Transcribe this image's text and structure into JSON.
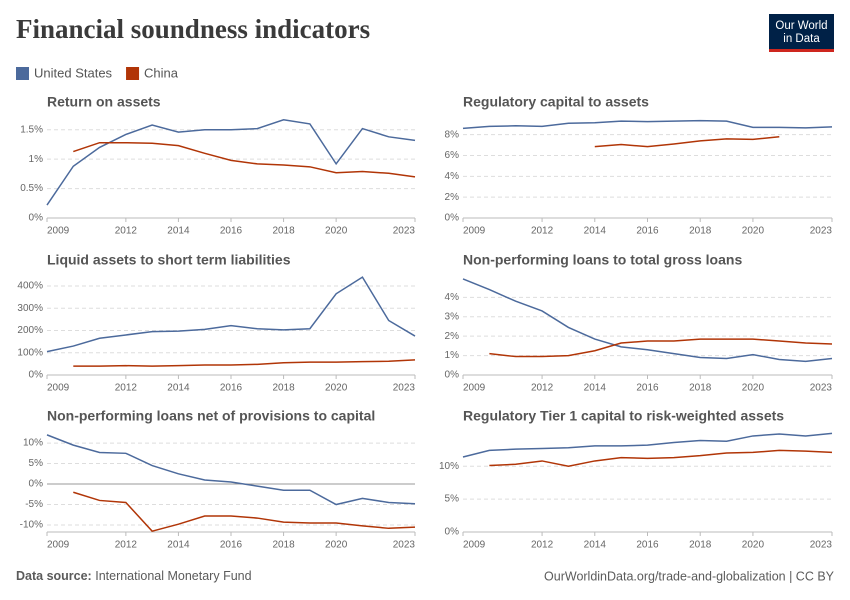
{
  "title": "Financial soundness indicators",
  "logo": [
    "Our World",
    "in Data"
  ],
  "source_label": "Data source:",
  "source": "International Monetary Fund",
  "credit": "OurWorldinData.org/trade-and-globalization | CC BY",
  "chart_data": [
    {
      "type": "line",
      "title": "Return on assets",
      "x": [
        2009,
        2010,
        2011,
        2012,
        2013,
        2014,
        2015,
        2016,
        2017,
        2018,
        2019,
        2020,
        2021,
        2022,
        2023
      ],
      "xlim": [
        2009,
        2023
      ],
      "xticks": [
        2009,
        2012,
        2014,
        2016,
        2018,
        2020,
        2023
      ],
      "ylim": [
        0,
        1.7
      ],
      "yticks": [
        {
          "value": 0,
          "label": "0%"
        },
        {
          "value": 0.5,
          "label": "0.5%"
        },
        {
          "value": 1,
          "label": "1%"
        },
        {
          "value": 1.5,
          "label": "1.5%"
        }
      ],
      "grid": true,
      "series": [
        {
          "name": "United States",
          "color": "#4c6a9c",
          "values": [
            0.22,
            0.88,
            1.2,
            1.42,
            1.58,
            1.46,
            1.5,
            1.5,
            1.52,
            1.67,
            1.6,
            0.92,
            1.52,
            1.38,
            1.32
          ]
        },
        {
          "name": "China",
          "color": "#b13507",
          "values": [
            null,
            1.13,
            1.28,
            1.28,
            1.27,
            1.23,
            1.1,
            0.98,
            0.92,
            0.9,
            0.87,
            0.77,
            0.79,
            0.76,
            0.7
          ]
        }
      ]
    },
    {
      "type": "line",
      "title": "Regulatory capital to assets",
      "x": [
        2009,
        2010,
        2011,
        2012,
        2013,
        2014,
        2015,
        2016,
        2017,
        2018,
        2019,
        2020,
        2021,
        2022,
        2023
      ],
      "xlim": [
        2009,
        2023
      ],
      "xticks": [
        2009,
        2012,
        2014,
        2016,
        2018,
        2020,
        2023
      ],
      "ylim": [
        0,
        9.6
      ],
      "yticks": [
        {
          "value": 0,
          "label": "0%"
        },
        {
          "value": 2,
          "label": "2%"
        },
        {
          "value": 4,
          "label": "4%"
        },
        {
          "value": 6,
          "label": "6%"
        },
        {
          "value": 8,
          "label": "8%"
        }
      ],
      "grid": true,
      "series": [
        {
          "name": "United States",
          "color": "#4c6a9c",
          "values": [
            8.6,
            8.8,
            8.85,
            8.8,
            9.1,
            9.15,
            9.3,
            9.25,
            9.3,
            9.35,
            9.3,
            8.7,
            8.7,
            8.65,
            8.75
          ]
        },
        {
          "name": "China",
          "color": "#b13507",
          "values": [
            null,
            null,
            null,
            null,
            null,
            6.85,
            7.05,
            6.85,
            7.1,
            7.4,
            7.6,
            7.55,
            7.8,
            null,
            null
          ]
        }
      ]
    },
    {
      "type": "line",
      "title": "Liquid assets to short term liabilities",
      "x": [
        2009,
        2010,
        2011,
        2012,
        2013,
        2014,
        2015,
        2016,
        2017,
        2018,
        2019,
        2020,
        2021,
        2022,
        2023
      ],
      "xlim": [
        2009,
        2023
      ],
      "xticks": [
        2009,
        2012,
        2014,
        2016,
        2018,
        2020,
        2023
      ],
      "ylim": [
        0,
        445
      ],
      "yticks": [
        {
          "value": 0,
          "label": "0%"
        },
        {
          "value": 100,
          "label": "100%"
        },
        {
          "value": 200,
          "label": "200%"
        },
        {
          "value": 300,
          "label": "300%"
        },
        {
          "value": 400,
          "label": "400%"
        }
      ],
      "grid": true,
      "series": [
        {
          "name": "United States",
          "color": "#4c6a9c",
          "values": [
            105,
            130,
            165,
            180,
            195,
            197,
            205,
            222,
            208,
            203,
            208,
            365,
            440,
            245,
            175
          ]
        },
        {
          "name": "China",
          "color": "#b13507",
          "values": [
            null,
            40,
            40,
            42,
            40,
            42,
            45,
            45,
            48,
            55,
            58,
            58,
            60,
            62,
            68
          ]
        }
      ]
    },
    {
      "type": "line",
      "title": "Non-performing loans to total gross loans",
      "x": [
        2009,
        2010,
        2011,
        2012,
        2013,
        2014,
        2015,
        2016,
        2017,
        2018,
        2019,
        2020,
        2021,
        2022,
        2023
      ],
      "xlim": [
        2009,
        2023
      ],
      "xticks": [
        2009,
        2012,
        2014,
        2016,
        2018,
        2020,
        2023
      ],
      "ylim": [
        0,
        5.1
      ],
      "yticks": [
        {
          "value": 0,
          "label": "0%"
        },
        {
          "value": 1,
          "label": "1%"
        },
        {
          "value": 2,
          "label": "2%"
        },
        {
          "value": 3,
          "label": "3%"
        },
        {
          "value": 4,
          "label": "4%"
        }
      ],
      "grid": true,
      "series": [
        {
          "name": "United States",
          "color": "#4c6a9c",
          "values": [
            4.95,
            4.4,
            3.8,
            3.3,
            2.45,
            1.85,
            1.45,
            1.3,
            1.1,
            0.9,
            0.85,
            1.05,
            0.8,
            0.7,
            0.85
          ]
        },
        {
          "name": "China",
          "color": "#b13507",
          "values": [
            null,
            1.1,
            0.95,
            0.95,
            1.0,
            1.25,
            1.65,
            1.75,
            1.75,
            1.85,
            1.85,
            1.85,
            1.75,
            1.65,
            1.6
          ]
        }
      ]
    },
    {
      "type": "line",
      "title": "Non-performing loans net of provisions to capital",
      "x": [
        2009,
        2010,
        2011,
        2012,
        2013,
        2014,
        2015,
        2016,
        2017,
        2018,
        2019,
        2020,
        2021,
        2022,
        2023
      ],
      "xlim": [
        2009,
        2023
      ],
      "xticks": [
        2009,
        2012,
        2014,
        2016,
        2018,
        2020,
        2023
      ],
      "ylim": [
        -11.7,
        12.7
      ],
      "yticks": [
        {
          "value": -10,
          "label": "-10%"
        },
        {
          "value": -5,
          "label": "-5%"
        },
        {
          "value": 0,
          "label": "0%"
        },
        {
          "value": 5,
          "label": "5%"
        },
        {
          "value": 10,
          "label": "10%"
        }
      ],
      "grid": true,
      "series": [
        {
          "name": "United States",
          "color": "#4c6a9c",
          "values": [
            12,
            9.5,
            7.7,
            7.5,
            4.5,
            2.5,
            1,
            0.5,
            -0.5,
            -1.5,
            -1.5,
            -5,
            -3.5,
            -4.5,
            -4.8
          ]
        },
        {
          "name": "China",
          "color": "#b13507",
          "values": [
            null,
            -2,
            -4,
            -4.5,
            -11.5,
            -9.8,
            -7.8,
            -7.8,
            -8.3,
            -9.3,
            -9.5,
            -9.5,
            -10.2,
            -10.8,
            -10.5
          ]
        }
      ]
    },
    {
      "type": "line",
      "title": "Regulatory Tier 1 capital to risk-weighted assets",
      "x": [
        2009,
        2010,
        2011,
        2012,
        2013,
        2014,
        2015,
        2016,
        2017,
        2018,
        2019,
        2020,
        2021,
        2022,
        2023
      ],
      "xlim": [
        2009,
        2023
      ],
      "xticks": [
        2009,
        2012,
        2014,
        2016,
        2018,
        2020,
        2023
      ],
      "ylim": [
        0,
        15.2
      ],
      "yticks": [
        {
          "value": 0,
          "label": "0%"
        },
        {
          "value": 5,
          "label": "5%"
        },
        {
          "value": 10,
          "label": "10%"
        }
      ],
      "grid": true,
      "series": [
        {
          "name": "United States",
          "color": "#4c6a9c",
          "values": [
            11.4,
            12.4,
            12.6,
            12.7,
            12.8,
            13.1,
            13.1,
            13.2,
            13.6,
            13.9,
            13.8,
            14.6,
            14.9,
            14.6,
            15.0
          ]
        },
        {
          "name": "China",
          "color": "#b13507",
          "values": [
            null,
            10.1,
            10.3,
            10.8,
            10.0,
            10.8,
            11.3,
            11.2,
            11.3,
            11.6,
            12.0,
            12.1,
            12.4,
            12.3,
            12.1
          ]
        }
      ]
    }
  ]
}
